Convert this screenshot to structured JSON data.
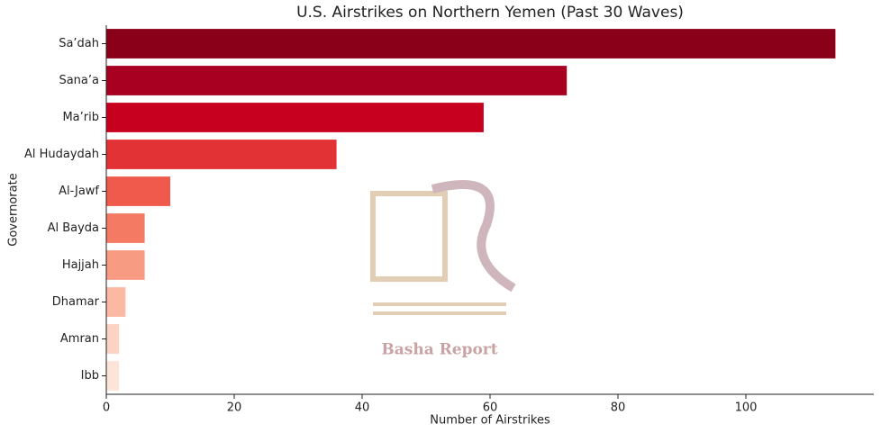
{
  "chart_data": {
    "type": "barh",
    "title": "U.S. Airstrikes on Northern Yemen (Past 30 Waves)",
    "xlabel": "Number of Airstrikes",
    "ylabel": "Governorate",
    "categories": [
      "Sa’dah",
      "Sana’a",
      "Ma’rib",
      "Al Hudaydah",
      "Al-Jawf",
      "Al Bayda",
      "Hajjah",
      "Dhamar",
      "Amran",
      "Ibb"
    ],
    "values": [
      114,
      72,
      59,
      36,
      10,
      6,
      6,
      3,
      2,
      2
    ],
    "colors": [
      "#8b0019",
      "#a70020",
      "#c8001f",
      "#e33236",
      "#ef5a4c",
      "#f47a63",
      "#f79b82",
      "#fbb8a2",
      "#fcd2c2",
      "#fde4d9"
    ],
    "xlim": [
      0,
      120
    ],
    "xticks": [
      0,
      20,
      40,
      60,
      80,
      100
    ],
    "watermark": "Basha Report"
  }
}
